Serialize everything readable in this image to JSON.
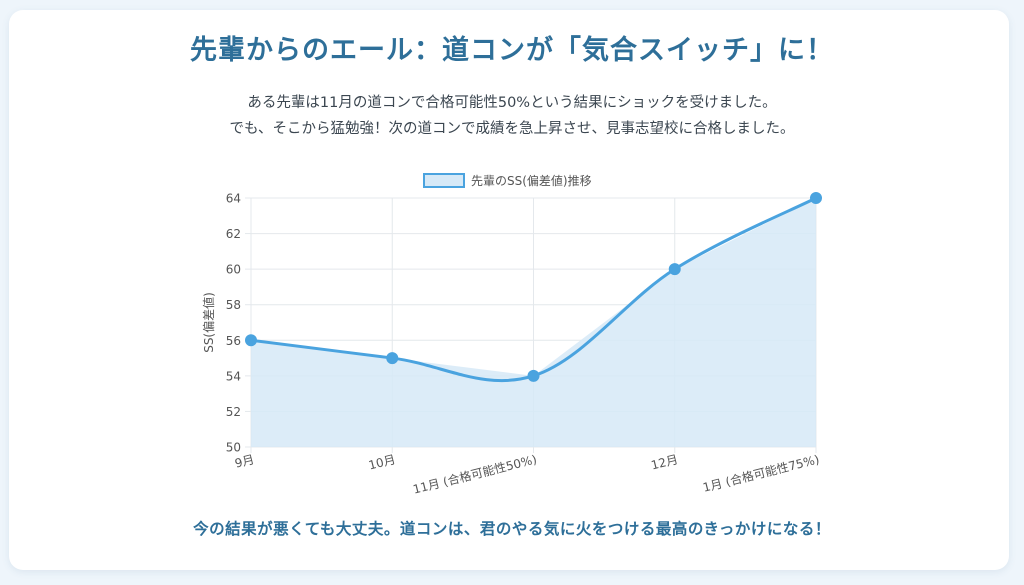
{
  "header": {
    "title": "先輩からのエール：道コンが「気合スイッチ」に！",
    "intro_line1": "ある先輩は11月の道コンで合格可能性50%という結果にショックを受けました。",
    "intro_line2": "でも、そこから猛勉強！次の道コンで成績を急上昇させ、見事志望校に合格しました。"
  },
  "footer": {
    "message": "今の結果が悪くても大丈夫。道コンは、君のやる気に火をつける最高のきっかけになる！"
  },
  "colors": {
    "line": "#4aa3df",
    "fill": "#d6e9f7",
    "title": "#2e6f99",
    "grid": "#e4e8ec",
    "tick": "#555555"
  },
  "chart_data": {
    "type": "line",
    "title": "",
    "xlabel": "",
    "ylabel": "SS(偏差値)",
    "categories": [
      "9月",
      "10月",
      "11月 (合格可能性50%)",
      "12月",
      "1月 (合格可能性75%)"
    ],
    "series": [
      {
        "name": "先輩のSS(偏差値)推移",
        "values": [
          56,
          55,
          54,
          60,
          64
        ]
      }
    ],
    "ylim": [
      50,
      64
    ],
    "yticks": [
      50,
      52,
      54,
      56,
      58,
      60,
      62,
      64
    ],
    "grid": true,
    "filled": true,
    "legend_position": "top"
  }
}
